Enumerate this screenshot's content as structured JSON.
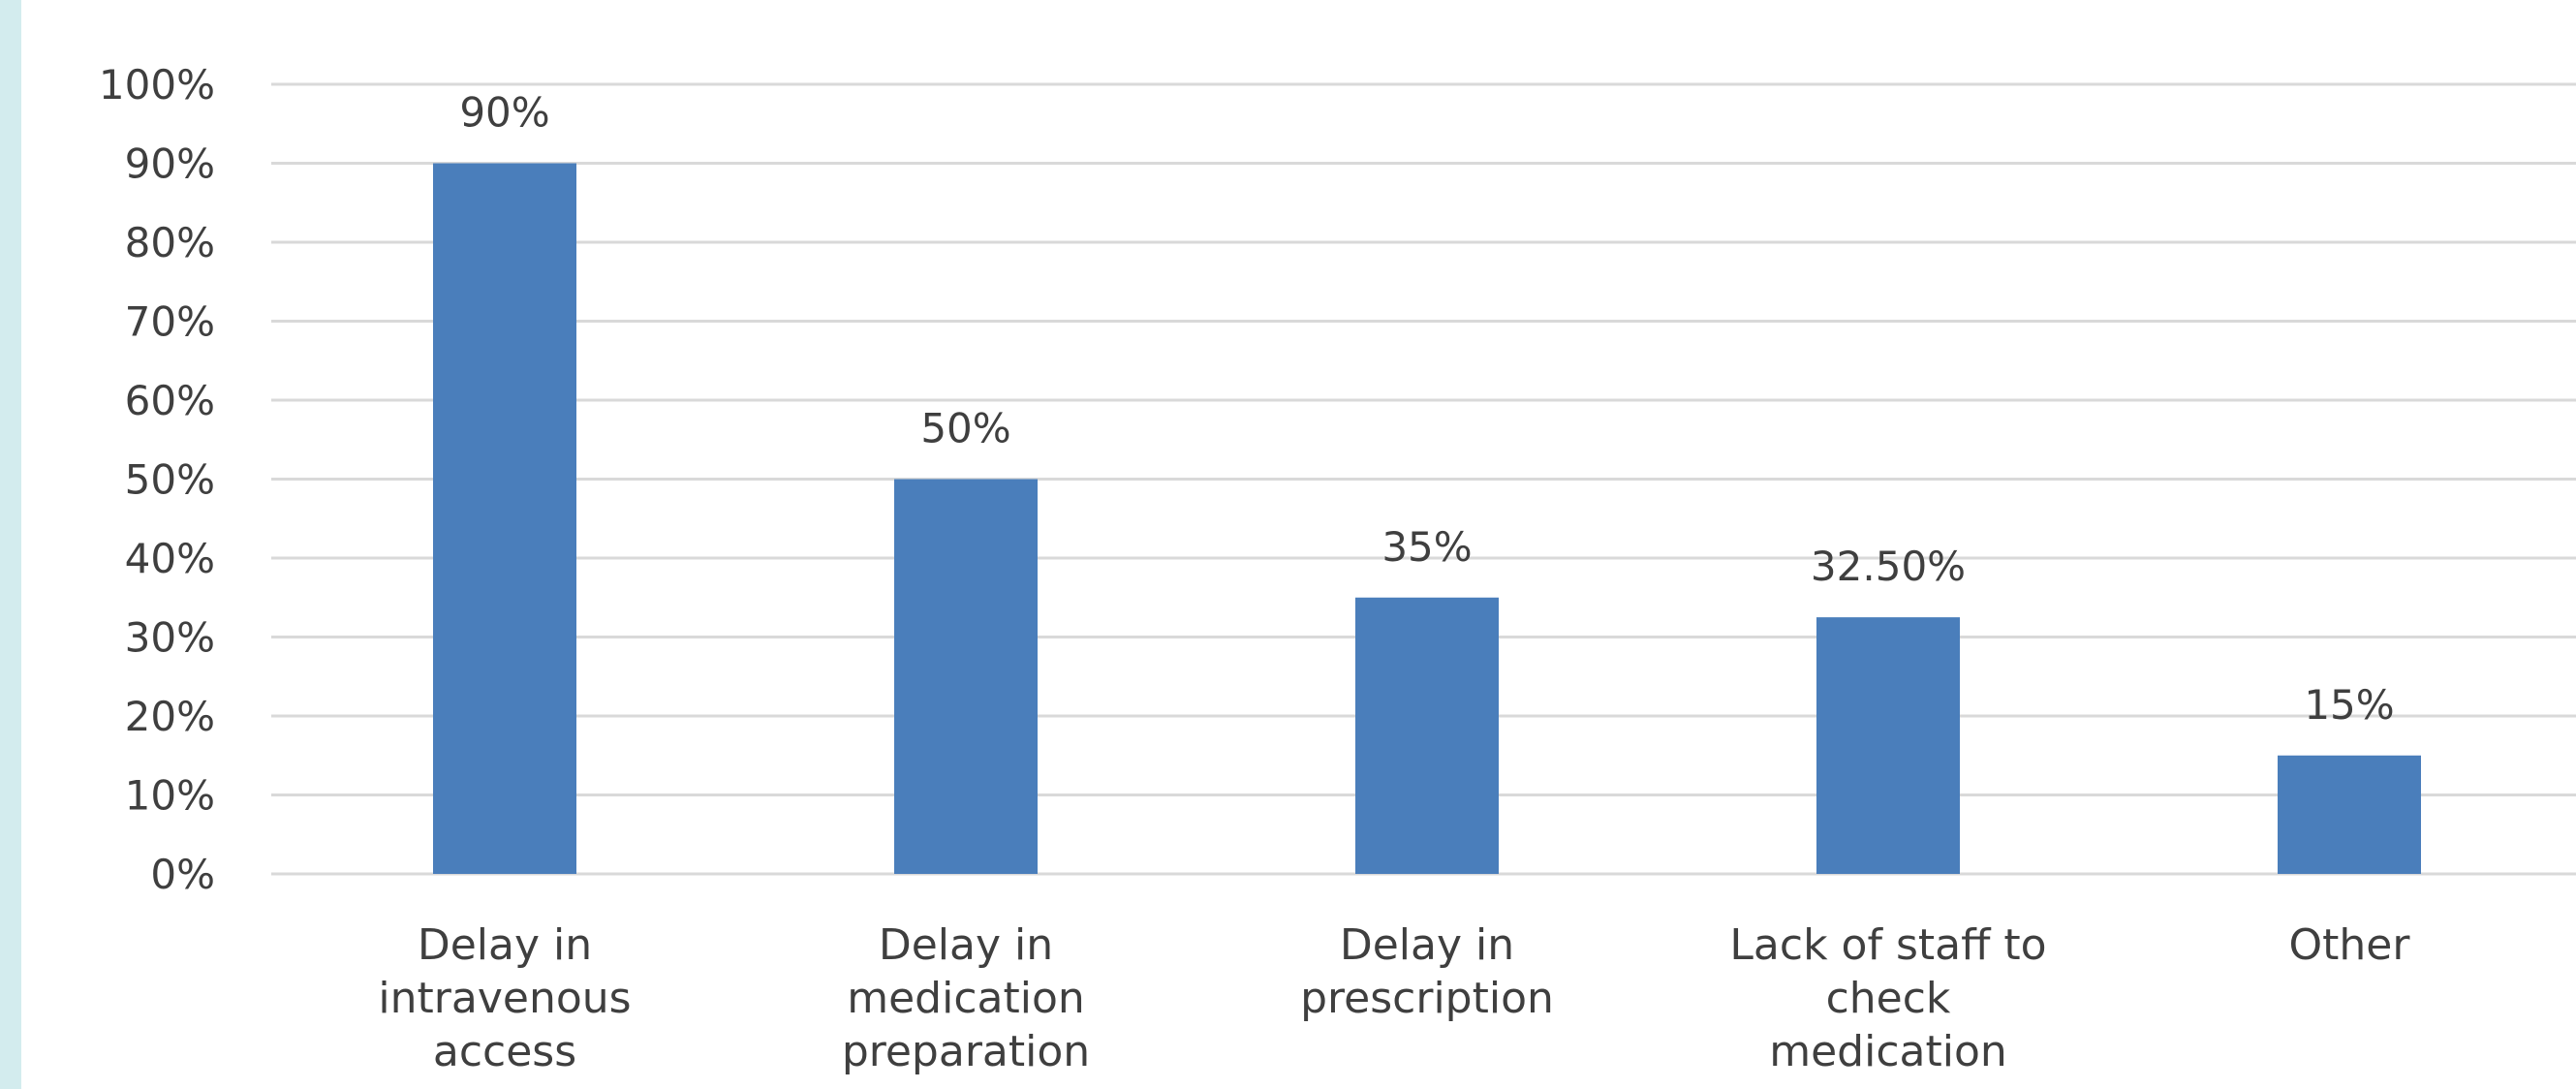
{
  "chart_data": {
    "type": "bar",
    "categories": [
      [
        "Delay in",
        "intravenous",
        "access"
      ],
      [
        "Delay in",
        "medication",
        "preparation"
      ],
      [
        "Delay in",
        "prescription"
      ],
      [
        "Lack of staff to",
        "check",
        "medication"
      ],
      [
        "Other"
      ]
    ],
    "values": [
      90,
      50,
      35,
      32.5,
      15
    ],
    "data_labels": [
      "90%",
      "50%",
      "35%",
      "32.50%",
      "15%"
    ],
    "yticks": [
      "0%",
      "10%",
      "20%",
      "30%",
      "40%",
      "50%",
      "60%",
      "70%",
      "80%",
      "90%",
      "100%"
    ],
    "ylim": [
      0,
      100
    ],
    "grid": true,
    "title": "",
    "xlabel": "",
    "ylabel": "",
    "colors": {
      "bar": "#4a7ebb",
      "grid": "#d9d9d9",
      "text": "#3f3f3f",
      "left_stripe": "#d3ecee"
    }
  }
}
